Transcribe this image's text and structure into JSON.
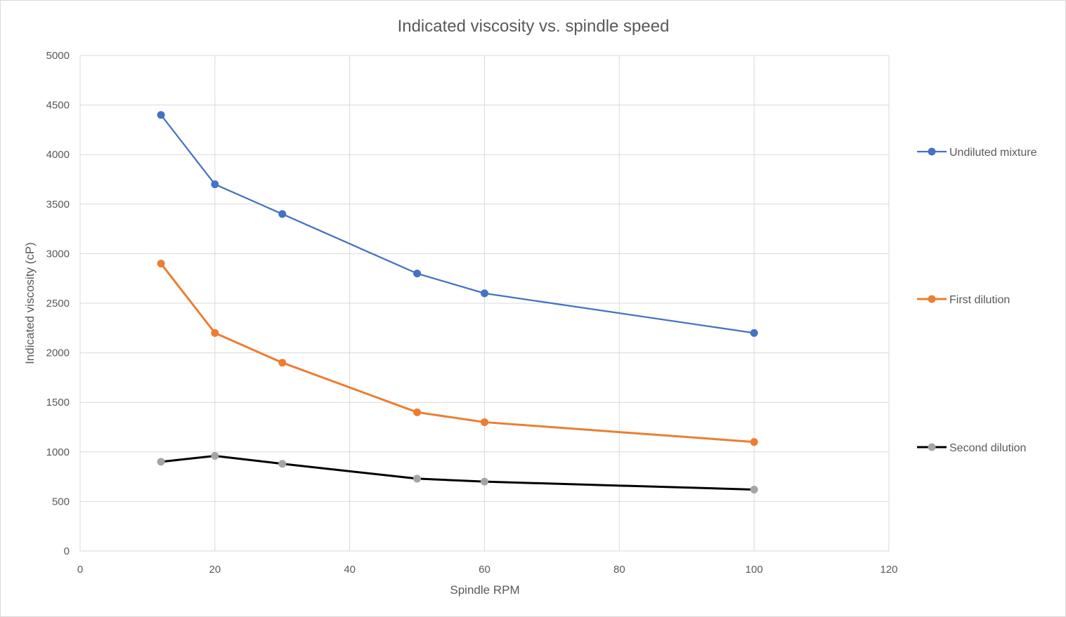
{
  "chart_data": {
    "type": "line",
    "title": "Indicated viscosity vs. spindle speed",
    "xlabel": "Spindle RPM",
    "ylabel": "Indicated viscosity (cP)",
    "xlim": [
      0,
      120
    ],
    "ylim": [
      0,
      5000
    ],
    "x_ticks": [
      0,
      20,
      40,
      60,
      80,
      100,
      120
    ],
    "y_ticks": [
      0,
      500,
      1000,
      1500,
      2000,
      2500,
      3000,
      3500,
      4000,
      4500,
      5000
    ],
    "grid": true,
    "legend_position": "right",
    "x": [
      12,
      20,
      30,
      50,
      60,
      100
    ],
    "series": [
      {
        "name": "Undiluted mixture",
        "values": [
          4400,
          3700,
          3400,
          2800,
          2600,
          2200
        ],
        "line_color": "#4472c4",
        "marker_color": "#4472c4"
      },
      {
        "name": "First dilution",
        "values": [
          2900,
          2200,
          1900,
          1400,
          1300,
          1100
        ],
        "line_color": "#ed7d31",
        "marker_color": "#ed7d31"
      },
      {
        "name": "Second dilution",
        "values": [
          900,
          960,
          880,
          730,
          700,
          620
        ],
        "line_color": "#000000",
        "marker_color": "#a5a5a5"
      }
    ]
  }
}
